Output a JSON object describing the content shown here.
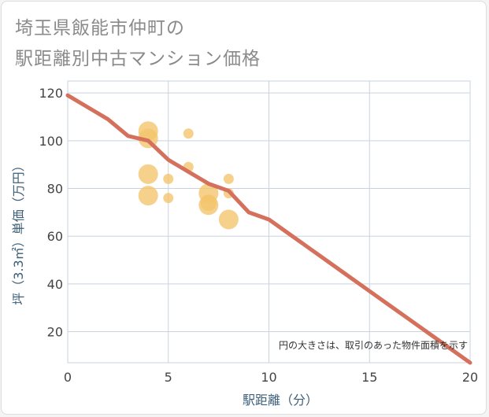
{
  "chart_data": {
    "type": "scatter",
    "title_line1": "埼玉県飯能市仲町の",
    "title_line2": "駅距離別中古マンション価格",
    "xlabel": "駅距離（分）",
    "ylabel": "坪（3.3㎡）単価（万円）",
    "xlim": [
      0,
      20
    ],
    "ylim": [
      7,
      125
    ],
    "xticks": [
      0,
      5,
      10,
      15,
      20
    ],
    "yticks": [
      20,
      40,
      60,
      80,
      100,
      120
    ],
    "note": "円の大きさは、取引のあった物件面積を示す",
    "points": [
      {
        "x": 4,
        "y": 104,
        "size": 3
      },
      {
        "x": 4,
        "y": 101,
        "size": 3
      },
      {
        "x": 4,
        "y": 86,
        "size": 3
      },
      {
        "x": 4,
        "y": 77,
        "size": 3
      },
      {
        "x": 5,
        "y": 84,
        "size": 1
      },
      {
        "x": 5,
        "y": 76,
        "size": 1
      },
      {
        "x": 6,
        "y": 103,
        "size": 1
      },
      {
        "x": 6,
        "y": 89,
        "size": 1
      },
      {
        "x": 7,
        "y": 78,
        "size": 3
      },
      {
        "x": 7,
        "y": 74,
        "size": 2
      },
      {
        "x": 7,
        "y": 73,
        "size": 3
      },
      {
        "x": 8,
        "y": 84,
        "size": 1
      },
      {
        "x": 8,
        "y": 78,
        "size": 1
      },
      {
        "x": 8,
        "y": 67,
        "size": 3
      }
    ],
    "trend": {
      "name": "trend",
      "x": [
        0,
        1,
        2,
        3,
        4,
        5,
        6,
        7,
        8,
        9,
        10,
        11,
        12,
        13,
        14,
        15,
        16,
        17,
        18,
        19,
        20
      ],
      "y": [
        119,
        114,
        109,
        102,
        100,
        92,
        87,
        82,
        79,
        70,
        67,
        61,
        55,
        49,
        43,
        37,
        31,
        25,
        19,
        13,
        7
      ]
    },
    "colors": {
      "bubble": "#f3c46c",
      "trend": "#d4705c",
      "grid": "#c9d3df",
      "axis_text": "#3d5f7a"
    }
  }
}
